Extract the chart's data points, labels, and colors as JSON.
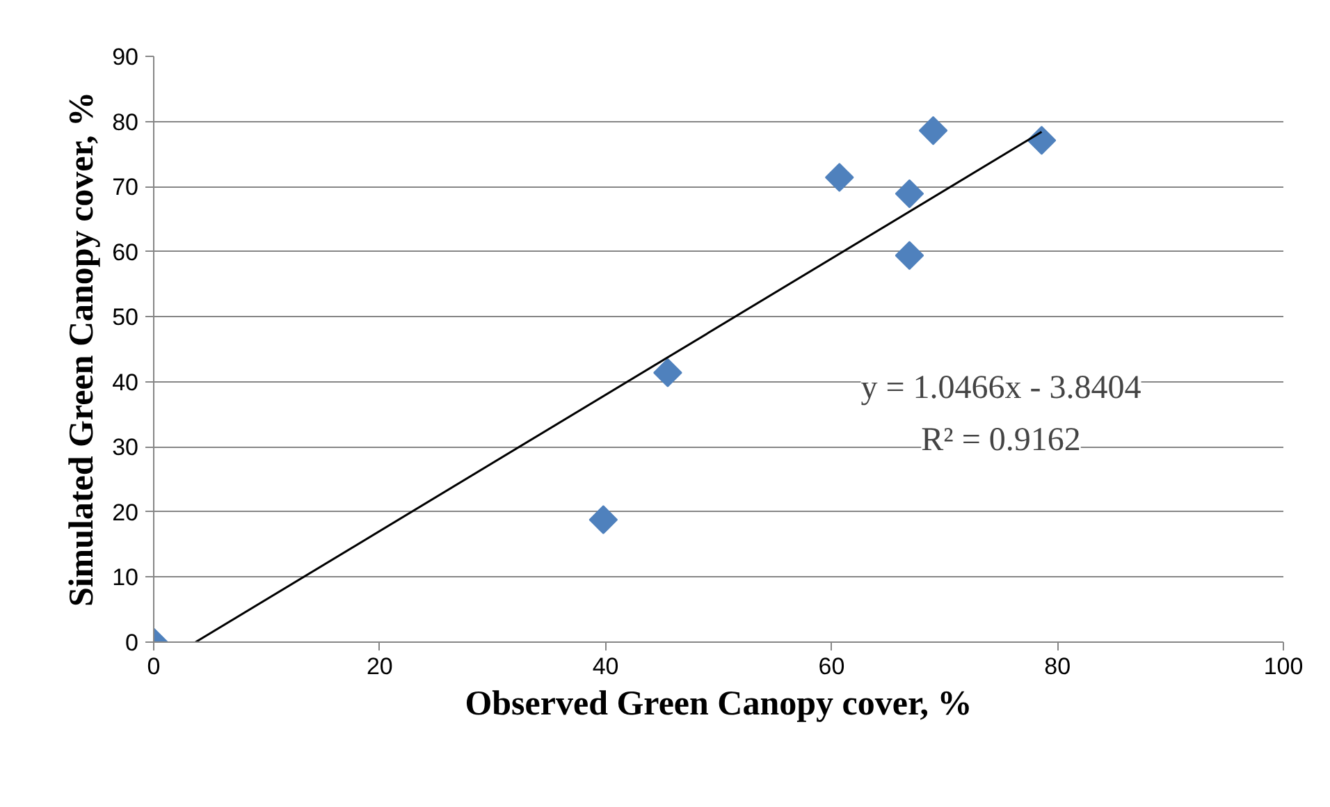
{
  "chart_data": {
    "type": "scatter",
    "xlabel": "Observed Green Canopy cover, %",
    "ylabel": "Simulated Green Canopy cover, %",
    "xlim": [
      0,
      100
    ],
    "ylim": [
      0,
      90
    ],
    "xticks": [
      0,
      20,
      40,
      60,
      80,
      100
    ],
    "yticks": [
      0,
      10,
      20,
      30,
      40,
      50,
      60,
      70,
      80,
      90
    ],
    "grid": "y",
    "marker": "diamond",
    "series": [
      {
        "color": "#4f81bd",
        "x": [
          0,
          39.8,
          45.5,
          60.7,
          66.9,
          66.9,
          69.0,
          78.6
        ],
        "values": [
          0,
          18.8,
          41.4,
          71.4,
          59.4,
          68.9,
          78.6,
          77.1
        ]
      },
      {
        "type": "line",
        "marker": "none",
        "color": "#000000",
        "x": [
          3.7,
          78.6
        ],
        "values": [
          0,
          78.4
        ]
      }
    ],
    "annotations": [
      "y = 1.0466x - 3.8404",
      "R² = 0.9162"
    ]
  }
}
